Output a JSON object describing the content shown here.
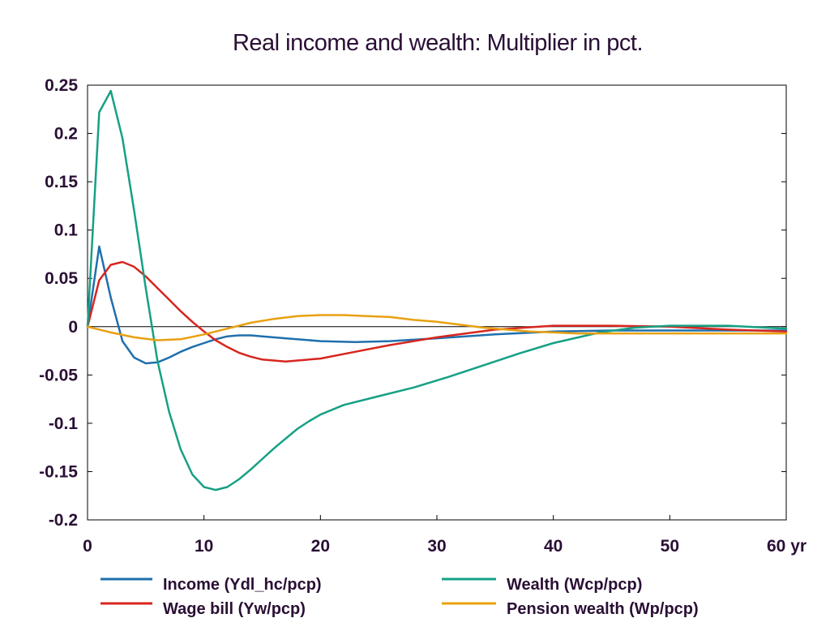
{
  "chart_data": {
    "type": "line",
    "title": "Real income and wealth: Multiplier in pct.",
    "xlabel": "",
    "ylabel": "",
    "xlim": [
      0,
      60
    ],
    "ylim": [
      -0.2,
      0.25
    ],
    "x_ticks": [
      0,
      10,
      20,
      30,
      40,
      50,
      60
    ],
    "x_tick_labels": [
      "0",
      "10",
      "20",
      "30",
      "40",
      "50",
      "60 yr"
    ],
    "y_ticks": [
      0.25,
      0.2,
      0.15,
      0.1,
      0.05,
      0,
      -0.05,
      -0.1,
      -0.15,
      -0.2
    ],
    "y_tick_labels": [
      "0.25",
      "0.2",
      "0.15",
      "0.1",
      "0.05",
      "0",
      "-0.05",
      "-0.1",
      "-0.15",
      "-0.2"
    ],
    "grid": false,
    "legend_position": "bottom",
    "series": [
      {
        "name": "Income (Ydl_hc/pcp)",
        "color": "#1f6fad",
        "x": [
          0,
          1,
          2,
          3,
          4,
          5,
          6,
          7,
          8,
          9,
          10,
          11,
          12,
          13,
          14,
          15,
          17,
          20,
          23,
          26,
          30,
          35,
          40,
          45,
          50,
          55,
          60
        ],
        "y": [
          0,
          0.083,
          0.03,
          -0.015,
          -0.032,
          -0.038,
          -0.037,
          -0.032,
          -0.026,
          -0.021,
          -0.017,
          -0.013,
          -0.01,
          -0.009,
          -0.009,
          -0.01,
          -0.012,
          -0.015,
          -0.016,
          -0.015,
          -0.012,
          -0.008,
          -0.005,
          -0.004,
          -0.004,
          -0.004,
          -0.004
        ]
      },
      {
        "name": "Wage bill (Yw/pcp)",
        "color": "#d7261e",
        "x": [
          0,
          1,
          2,
          3,
          4,
          5,
          6,
          7,
          8,
          9,
          10,
          11,
          12,
          13,
          14,
          15,
          17,
          20,
          23,
          26,
          30,
          35,
          40,
          45,
          50,
          55,
          60
        ],
        "y": [
          0,
          0.048,
          0.064,
          0.067,
          0.062,
          0.052,
          0.04,
          0.028,
          0.016,
          0.005,
          -0.005,
          -0.014,
          -0.021,
          -0.027,
          -0.031,
          -0.034,
          -0.036,
          -0.033,
          -0.026,
          -0.019,
          -0.011,
          -0.003,
          0.001,
          0.001,
          0,
          -0.003,
          -0.005
        ]
      },
      {
        "name": "Wealth (Wcp/pcp)",
        "color": "#16a085",
        "x": [
          0,
          1,
          2,
          3,
          4,
          5,
          6,
          7,
          8,
          9,
          10,
          11,
          12,
          13,
          14,
          15,
          16,
          17,
          18,
          19,
          20,
          22,
          25,
          28,
          31,
          34,
          37,
          40,
          44,
          47,
          50,
          55,
          60
        ],
        "y": [
          0,
          0.222,
          0.244,
          0.195,
          0.12,
          0.04,
          -0.035,
          -0.088,
          -0.127,
          -0.153,
          -0.166,
          -0.169,
          -0.166,
          -0.158,
          -0.148,
          -0.137,
          -0.126,
          -0.116,
          -0.106,
          -0.098,
          -0.091,
          -0.081,
          -0.072,
          -0.063,
          -0.052,
          -0.04,
          -0.028,
          -0.017,
          -0.006,
          -0.001,
          0.001,
          0.001,
          -0.002
        ]
      },
      {
        "name": "Pension wealth (Wp/pcp)",
        "color": "#e8a010",
        "x": [
          0,
          2,
          4,
          6,
          8,
          10,
          12,
          14,
          16,
          18,
          20,
          22,
          24,
          26,
          28,
          30,
          32,
          34,
          36,
          38,
          40,
          42,
          44,
          46,
          48,
          50,
          55,
          60
        ],
        "y": [
          0,
          -0.006,
          -0.011,
          -0.014,
          -0.013,
          -0.008,
          -0.002,
          0.004,
          0.008,
          0.011,
          0.012,
          0.012,
          0.011,
          0.01,
          0.007,
          0.005,
          0.002,
          -0.001,
          -0.003,
          -0.005,
          -0.006,
          -0.007,
          -0.007,
          -0.007,
          -0.007,
          -0.007,
          -0.007,
          -0.007
        ]
      }
    ]
  }
}
